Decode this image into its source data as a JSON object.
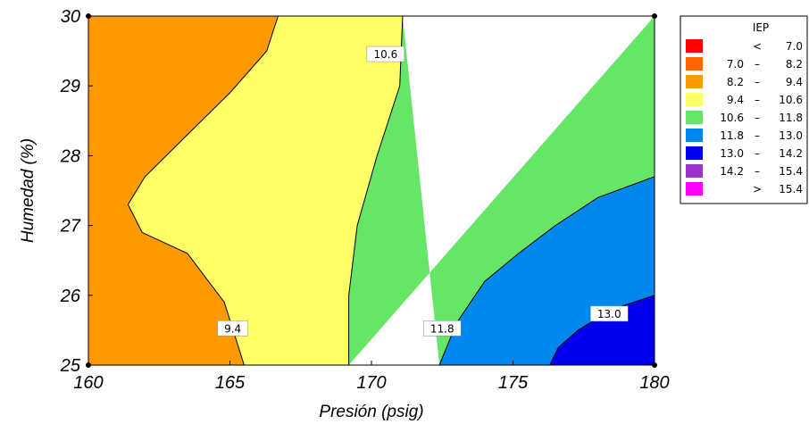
{
  "chart_data": {
    "type": "contour",
    "title": "",
    "xlabel": "Presión (psig)",
    "ylabel": "Humedad (%)",
    "xlim": [
      160,
      180
    ],
    "ylim": [
      25,
      30
    ],
    "xticks": [
      "160",
      "165",
      "170",
      "175",
      "180"
    ],
    "yticks": [
      "25",
      "26",
      "27",
      "28",
      "29",
      "30"
    ],
    "legend": {
      "title": "IEP",
      "position": "right",
      "entries": [
        {
          "op": "<",
          "lo": "",
          "dash": "",
          "hi": "7.0",
          "color": "#ff0000"
        },
        {
          "op": "",
          "lo": "7.0",
          "dash": "–",
          "hi": "8.2",
          "color": "#ff6600"
        },
        {
          "op": "",
          "lo": "8.2",
          "dash": "–",
          "hi": "9.4",
          "color": "#ff9900"
        },
        {
          "op": "",
          "lo": "9.4",
          "dash": "–",
          "hi": "10.6",
          "color": "#ffff66"
        },
        {
          "op": "",
          "lo": "10.6",
          "dash": "–",
          "hi": "11.8",
          "color": "#66e666"
        },
        {
          "op": "",
          "lo": "11.8",
          "dash": "–",
          "hi": "13.0",
          "color": "#0088ee"
        },
        {
          "op": "",
          "lo": "13.0",
          "dash": "–",
          "hi": "14.2",
          "color": "#0000ee"
        },
        {
          "op": "",
          "lo": "14.2",
          "dash": "–",
          "hi": "15.4",
          "color": "#9933cc"
        },
        {
          "op": ">",
          "lo": "",
          "dash": "",
          "hi": "15.4",
          "color": "#ff00ff"
        }
      ]
    },
    "contours": [
      {
        "level": "9.4",
        "points": [
          [
            166.7,
            30
          ],
          [
            166.3,
            29.5
          ],
          [
            165.0,
            28.9
          ],
          [
            163.5,
            28.3
          ],
          [
            162.0,
            27.7
          ],
          [
            161.4,
            27.3
          ],
          [
            161.9,
            26.9
          ],
          [
            163.5,
            26.6
          ],
          [
            164.8,
            25.9
          ],
          [
            165.5,
            25
          ]
        ]
      },
      {
        "level": "10.6",
        "points": [
          [
            171.1,
            30
          ],
          [
            171.0,
            29.0
          ],
          [
            170.2,
            28.0
          ],
          [
            169.5,
            27.0
          ],
          [
            169.2,
            26.0
          ],
          [
            169.2,
            25
          ]
        ]
      },
      {
        "level": "11.8",
        "points": [
          [
            180,
            27.7
          ],
          [
            178.0,
            27.4
          ],
          [
            176.5,
            27.0
          ],
          [
            175.2,
            26.6
          ],
          [
            174.0,
            26.2
          ],
          [
            173.0,
            25.6
          ],
          [
            172.4,
            25
          ]
        ]
      },
      {
        "level": "13.0",
        "points": [
          [
            180,
            26.0
          ],
          [
            178.5,
            25.8
          ],
          [
            177.3,
            25.5
          ],
          [
            176.6,
            25.25
          ],
          [
            176.3,
            25
          ]
        ]
      }
    ],
    "contour_labels": [
      {
        "text": "10.6",
        "x": 170.5,
        "y": 29.45
      },
      {
        "text": "9.4",
        "x": 165.1,
        "y": 25.52
      },
      {
        "text": "11.8",
        "x": 172.5,
        "y": 25.52
      },
      {
        "text": "13.0",
        "x": 178.4,
        "y": 25.73
      }
    ]
  }
}
